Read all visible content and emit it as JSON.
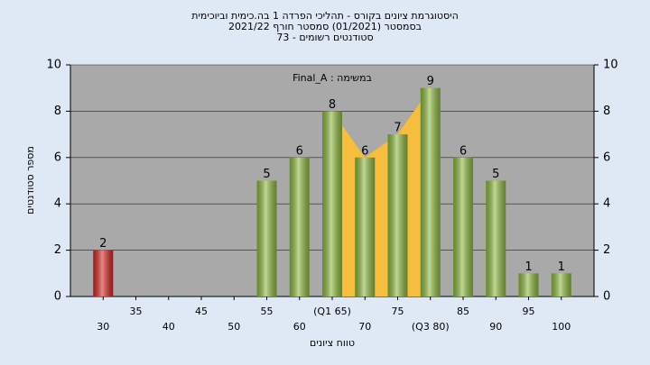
{
  "chart_data": {
    "type": "bar",
    "title": [
      "היסטוגרמת ציונים בקורס - תהליכי הפרדה 1 בה.כימית וביוכימית",
      "בסמסטר  (01/2021)  סמסטר חורף 2021/22",
      "סטודנטים רשומים - 73"
    ],
    "annotation": "Final_A : במשימה",
    "x_label": "טווח ציונים",
    "y_label": "מספר סטודנטים",
    "categories": [
      "30",
      "35",
      "40",
      "45",
      "50",
      "55",
      "60",
      "(Q1 65)",
      "70",
      "75",
      "(Q3 80)",
      "85",
      "90",
      "95",
      "100"
    ],
    "values": [
      2,
      0,
      0,
      0,
      0,
      5,
      6,
      8,
      6,
      7,
      9,
      6,
      5,
      1,
      1
    ],
    "colors": [
      "#d42424",
      "#8cb83c",
      "#8cb83c",
      "#8cb83c",
      "#8cb83c",
      "#8cb83c",
      "#8cb83c",
      "#8cb83c",
      "#8cb83c",
      "#8cb83c",
      "#8cb83c",
      "#8cb83c",
      "#8cb83c",
      "#8cb83c",
      "#8cb83c"
    ],
    "quartile_color": "#f7bd3c",
    "ylim": [
      0,
      10
    ],
    "yticks": [
      0,
      2,
      4,
      6,
      8,
      10
    ],
    "y2lim": [
      0,
      10
    ],
    "y2ticks": [
      0,
      2,
      4,
      6,
      8,
      10
    ]
  }
}
